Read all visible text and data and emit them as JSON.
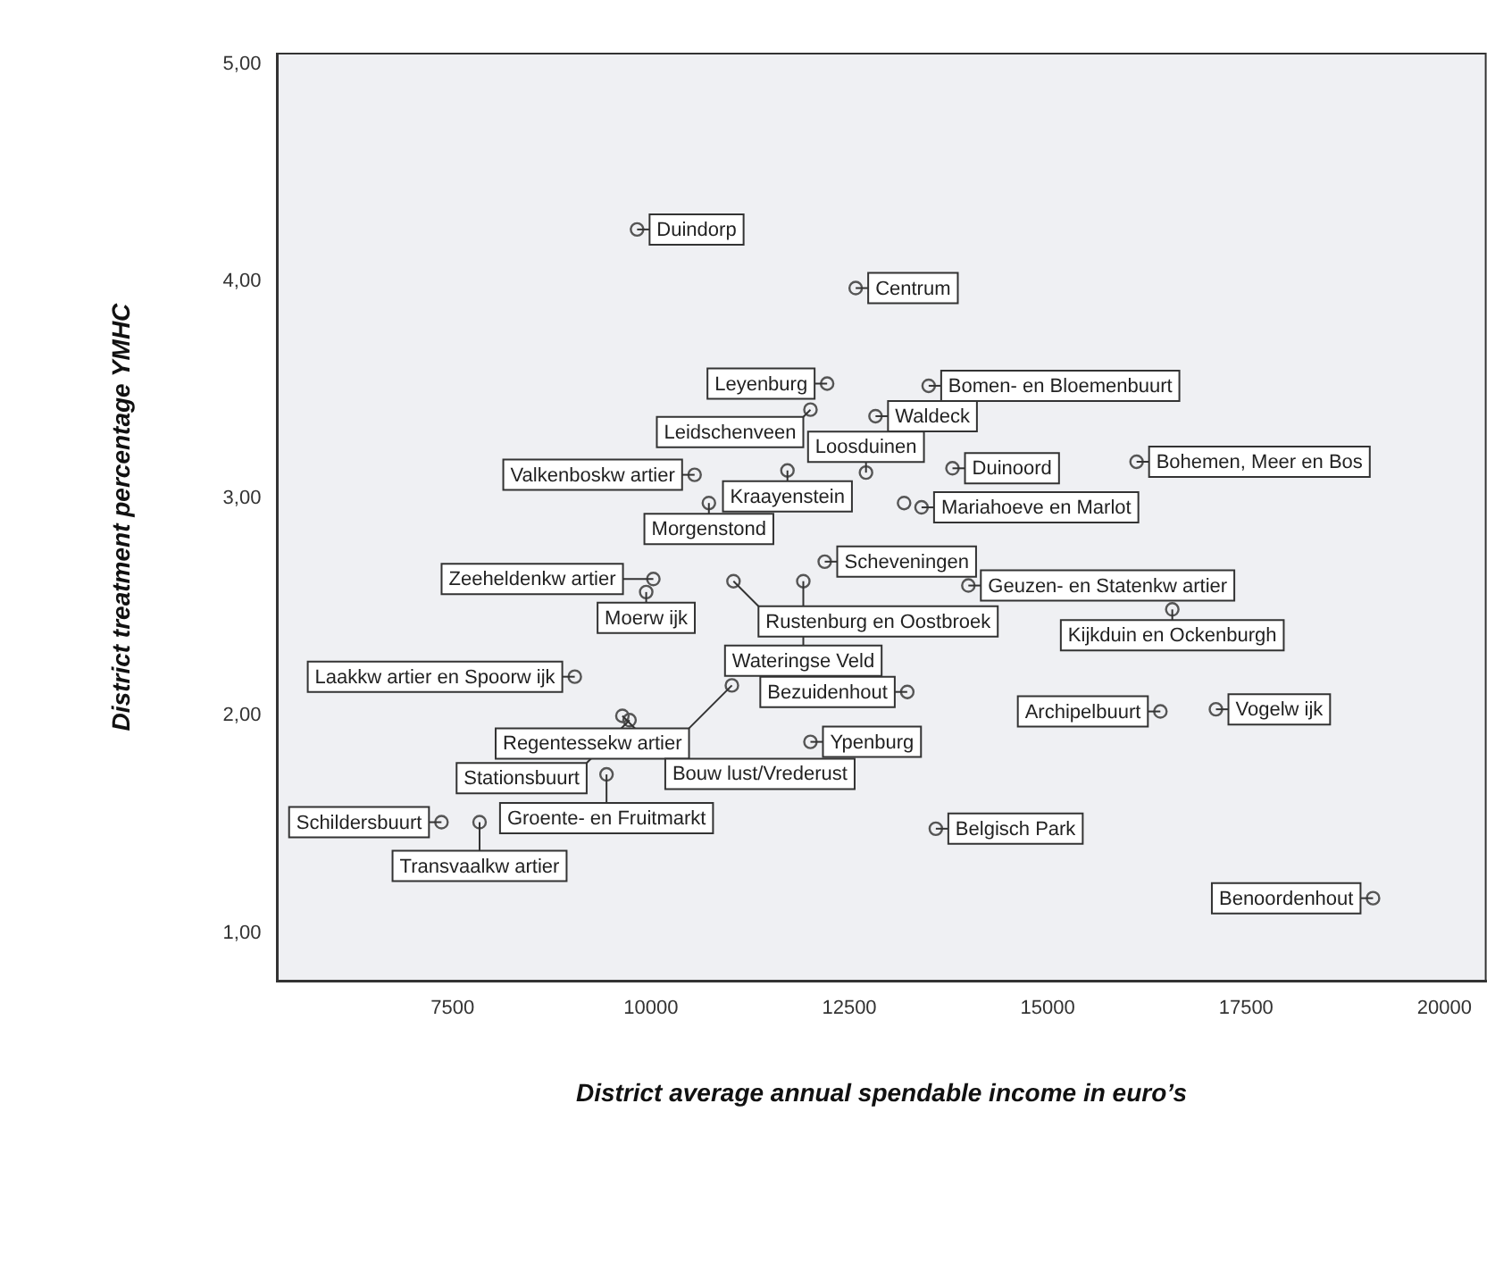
{
  "chart_data": {
    "type": "scatter",
    "xlabel": "District average annual spendable income in euro’s",
    "ylabel": "District treatment percentage YMHC",
    "color": "#555555",
    "marker": "circle",
    "x": [
      9825,
      12580,
      12220,
      12010,
      13500,
      12830,
      10550,
      11720,
      12710,
      13800,
      16120,
      13190,
      13410,
      10730,
      10030,
      9940,
      11040,
      11920,
      12190,
      14000,
      16570,
      9040,
      11020,
      17120,
      16420,
      9640,
      9730,
      12010,
      13230,
      9440,
      7360,
      7840,
      13590,
      19100
    ],
    "values": [
      4.24,
      3.97,
      3.53,
      3.41,
      3.52,
      3.38,
      3.11,
      3.13,
      3.12,
      3.14,
      3.17,
      2.98,
      2.96,
      2.98,
      2.63,
      2.57,
      2.62,
      2.62,
      2.71,
      2.6,
      2.49,
      2.18,
      2.14,
      2.03,
      2.02,
      2.0,
      1.98,
      1.88,
      2.11,
      1.73,
      1.51,
      1.51,
      1.48,
      1.16
    ],
    "xlim": [
      5290,
      20520
    ],
    "ylim": [
      0.78,
      5.05
    ],
    "xticks": [
      7500,
      10000,
      12500,
      15000,
      17500,
      20000
    ],
    "yticks": [
      {
        "value": 1,
        "label": "1,00"
      },
      {
        "value": 2,
        "label": "2,00"
      },
      {
        "value": 3,
        "label": "3,00"
      },
      {
        "value": 4,
        "label": "4,00"
      },
      {
        "value": 5,
        "label": "5,00"
      }
    ],
    "annotations": [
      {
        "text": "Duindorp",
        "x": 9825,
        "y": 4.24
      },
      {
        "text": "Centrum",
        "x": 12580,
        "y": 3.97
      },
      {
        "text": "Leyenburg",
        "x": 12220,
        "y": 3.53
      },
      {
        "text": "Leidschenveen",
        "x": 12010,
        "y": 3.41
      },
      {
        "text": "Bomen- en Bloemenbuurt",
        "x": 13500,
        "y": 3.52
      },
      {
        "text": "Waldeck",
        "x": 12830,
        "y": 3.38
      },
      {
        "text": "Valkenboskw artier",
        "x": 10550,
        "y": 3.11
      },
      {
        "text": "Kraayenstein",
        "x": 11720,
        "y": 3.13
      },
      {
        "text": "Loosduinen",
        "x": 12710,
        "y": 3.12
      },
      {
        "text": "Duinoord",
        "x": 13800,
        "y": 3.14
      },
      {
        "text": "Bohemen, Meer en Bos",
        "x": 16120,
        "y": 3.17
      },
      {
        "text": "Mariahoeve en Marlot",
        "x": 13410,
        "y": 2.96
      },
      {
        "text": "Morgenstond",
        "x": 10730,
        "y": 2.98
      },
      {
        "text": "Zeeheldenkw artier",
        "x": 10030,
        "y": 2.63
      },
      {
        "text": "Moerw ijk",
        "x": 9940,
        "y": 2.57
      },
      {
        "text": "Rustenburg en Oostbroek",
        "x": 11040,
        "y": 2.62
      },
      {
        "text": "Wateringse Veld",
        "x": 11920,
        "y": 2.62
      },
      {
        "text": "Scheveningen",
        "x": 12190,
        "y": 2.71
      },
      {
        "text": "Geuzen- en Statenkw artier",
        "x": 14000,
        "y": 2.6
      },
      {
        "text": "Kijkduin en Ockenburgh",
        "x": 16570,
        "y": 2.49
      },
      {
        "text": "Laakkw artier en Spoorw ijk",
        "x": 9040,
        "y": 2.18
      },
      {
        "text": "Regentessekw artier",
        "x": 11020,
        "y": 2.14
      },
      {
        "text": "Vogelw ijk",
        "x": 17120,
        "y": 2.03
      },
      {
        "text": "Archipelbuurt",
        "x": 16420,
        "y": 2.02
      },
      {
        "text": "Bouw lust/Vrederust",
        "x": 9640,
        "y": 2.0
      },
      {
        "text": "Stationsbuurt",
        "x": 9730,
        "y": 1.98
      },
      {
        "text": "Ypenburg",
        "x": 12010,
        "y": 1.88
      },
      {
        "text": "Bezuidenhout",
        "x": 13230,
        "y": 2.11
      },
      {
        "text": "Groente- en Fruitmarkt",
        "x": 9440,
        "y": 1.73
      },
      {
        "text": "Schildersbuurt",
        "x": 7360,
        "y": 1.51
      },
      {
        "text": "Transvaalkw artier",
        "x": 7840,
        "y": 1.51
      },
      {
        "text": "Belgisch Park",
        "x": 13590,
        "y": 1.48
      },
      {
        "text": "Benoordenhout",
        "x": 19100,
        "y": 1.16
      }
    ]
  }
}
